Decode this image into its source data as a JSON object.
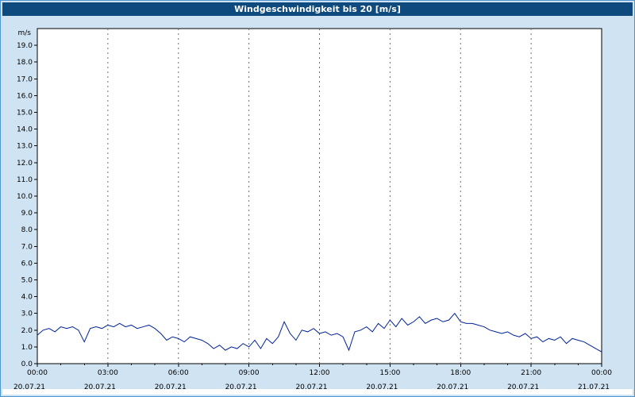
{
  "title": "Windgeschwindigkeit bis 20 [m/s]",
  "colors": {
    "window_bg": "#cfe3f2",
    "window_border": "#4f94cd",
    "titlebar_bg": "#0e4a7d",
    "titlebar_text": "#ffffff",
    "plot_bg": "#ffffff",
    "grid": "#707070",
    "axis": "#000000",
    "line": "#002299"
  },
  "chart_data": {
    "type": "line",
    "title": "Windgeschwindigkeit bis 20 [m/s]",
    "ylabel": "m/s",
    "xlabel": "",
    "ylim": [
      0,
      20
    ],
    "grid": "vertical-dashed",
    "legend": "none",
    "y_tick_labels": [
      "0.0",
      "1.0",
      "2.0",
      "3.0",
      "4.0",
      "5.0",
      "6.0",
      "7.0",
      "8.0",
      "9.0",
      "10.0",
      "11.0",
      "12.0",
      "13.0",
      "14.0",
      "15.0",
      "16.0",
      "17.0",
      "18.0",
      "19.0"
    ],
    "x_axis": {
      "hours": [
        0,
        3,
        6,
        9,
        12,
        15,
        18,
        21,
        24
      ],
      "time_labels": [
        "00:00",
        "03:00",
        "06:00",
        "09:00",
        "12:00",
        "15:00",
        "18:00",
        "21:00",
        "00:00"
      ],
      "date_labels": [
        "20.07.21",
        "20.07.21",
        "20.07.21",
        "20.07.21",
        "20.07.21",
        "20.07.21",
        "20.07.21",
        "20.07.21",
        "21.07.21"
      ]
    },
    "x_interval_hours": 0.25,
    "x_start_hour": 0,
    "values": [
      1.7,
      2.0,
      2.1,
      1.9,
      2.2,
      2.1,
      2.2,
      2.0,
      1.3,
      2.1,
      2.2,
      2.1,
      2.3,
      2.2,
      2.4,
      2.2,
      2.3,
      2.1,
      2.2,
      2.3,
      2.1,
      1.8,
      1.4,
      1.6,
      1.5,
      1.3,
      1.6,
      1.5,
      1.4,
      1.2,
      0.9,
      1.1,
      0.8,
      1.0,
      0.9,
      1.2,
      1.0,
      1.4,
      0.9,
      1.5,
      1.2,
      1.6,
      2.5,
      1.8,
      1.4,
      2.0,
      1.9,
      2.1,
      1.8,
      1.9,
      1.7,
      1.8,
      1.6,
      0.8,
      1.9,
      2.0,
      2.2,
      1.9,
      2.4,
      2.1,
      2.6,
      2.2,
      2.7,
      2.3,
      2.5,
      2.8,
      2.4,
      2.6,
      2.7,
      2.5,
      2.6,
      3.0,
      2.5,
      2.4,
      2.4,
      2.3,
      2.2,
      2.0,
      1.9,
      1.8,
      1.9,
      1.7,
      1.6,
      1.8,
      1.5,
      1.6,
      1.3,
      1.5,
      1.4,
      1.6,
      1.2,
      1.5,
      1.4,
      1.3,
      1.1,
      0.9,
      0.7
    ]
  }
}
